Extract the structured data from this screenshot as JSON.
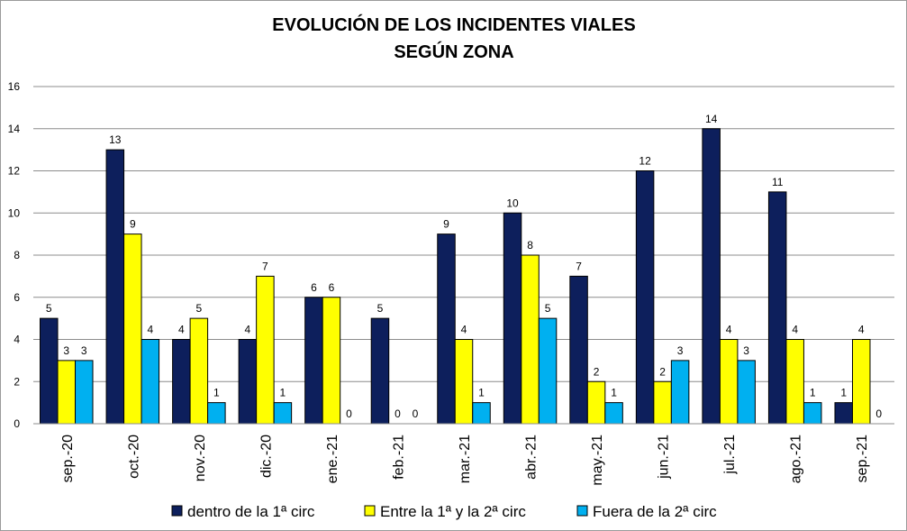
{
  "chart_data": {
    "type": "bar",
    "title_lines": [
      "EVOLUCIÓN DE LOS INCIDENTES VIALES",
      "SEGÚN ZONA"
    ],
    "categories": [
      "sep.-20",
      "oct.-20",
      "nov.-20",
      "dic.-20",
      "ene.-21",
      "feb.-21",
      "mar.-21",
      "abr.-21",
      "may.-21",
      "jun.-21",
      "jul.-21",
      "ago.-21",
      "sep.-21"
    ],
    "series": [
      {
        "name": "dentro de la 1ª circ",
        "color": "#0d1f5c",
        "values": [
          5,
          13,
          4,
          4,
          6,
          5,
          9,
          10,
          7,
          12,
          14,
          11,
          1
        ]
      },
      {
        "name": "Entre la 1ª y la 2ª circ",
        "color": "#ffff00",
        "values": [
          3,
          9,
          5,
          7,
          6,
          0,
          4,
          8,
          2,
          2,
          4,
          4,
          4
        ]
      },
      {
        "name": "Fuera de la 2ª circ",
        "color": "#00b0f0",
        "values": [
          3,
          4,
          1,
          1,
          0,
          0,
          1,
          5,
          1,
          3,
          3,
          1,
          0
        ]
      }
    ],
    "yticks": [
      0,
      2,
      4,
      6,
      8,
      10,
      12,
      14,
      16
    ],
    "ylim": [
      0,
      16
    ],
    "grid": true,
    "legend_position": "bottom"
  }
}
